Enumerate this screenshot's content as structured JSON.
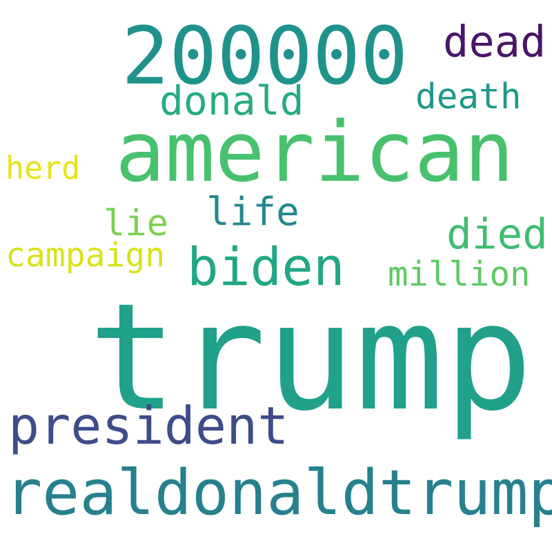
{
  "words": [
    {
      "text": "trump",
      "color": "#21a08a"
    },
    {
      "text": "american",
      "color": "#48c16e"
    },
    {
      "text": "200000",
      "color": "#20928c"
    },
    {
      "text": "realdonaldtrump",
      "color": "#27808e"
    },
    {
      "text": "president",
      "color": "#3e4c8a"
    },
    {
      "text": "biden",
      "color": "#22a785"
    },
    {
      "text": "dead",
      "color": "#481668"
    },
    {
      "text": "donald",
      "color": "#25ab82"
    },
    {
      "text": "death",
      "color": "#1f978b"
    },
    {
      "text": "died",
      "color": "#40bd72"
    },
    {
      "text": "million",
      "color": "#5ec962"
    },
    {
      "text": "life",
      "color": "#23888e"
    },
    {
      "text": "lie",
      "color": "#7ad151"
    },
    {
      "text": "herd",
      "color": "#e5e419"
    },
    {
      "text": "campaign",
      "color": "#d8e219"
    }
  ]
}
